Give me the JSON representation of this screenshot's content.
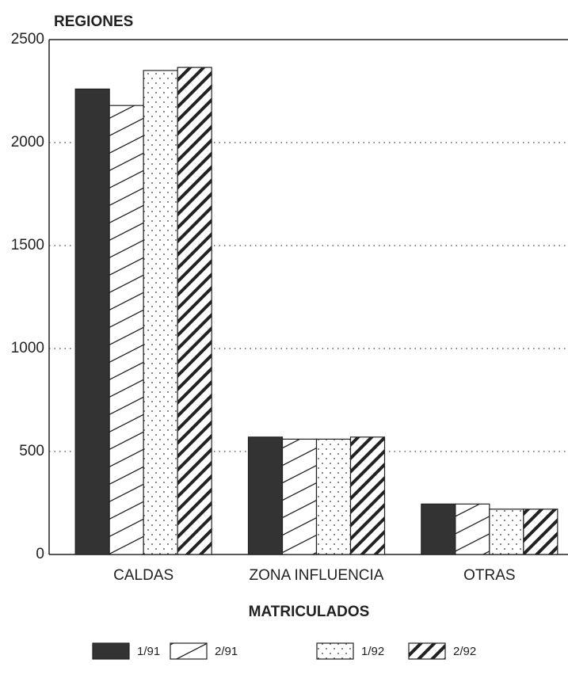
{
  "chart_data": {
    "type": "bar",
    "title": "REGIONES",
    "x_label": "MATRICULADOS",
    "categories": [
      "CALDAS",
      "ZONA INFLUENCIA",
      "OTRAS"
    ],
    "series": [
      {
        "name": "1/91",
        "color": "#333333",
        "pattern": "solid",
        "values": [
          2260,
          570,
          245
        ]
      },
      {
        "name": "2/91",
        "color": "#ffffff",
        "pattern": "hatch",
        "values": [
          2180,
          560,
          245
        ]
      },
      {
        "name": "1/92",
        "color": "#ffffff",
        "pattern": "dots",
        "values": [
          2350,
          560,
          220
        ]
      },
      {
        "name": "2/92",
        "color": "#ffffff",
        "pattern": "dense-hatch",
        "values": [
          2365,
          570,
          220
        ]
      }
    ],
    "ylim": [
      0,
      2500
    ],
    "yticks": [
      0,
      500,
      1000,
      1500,
      2000,
      2500
    ],
    "grid": true,
    "legend": "bottom"
  }
}
